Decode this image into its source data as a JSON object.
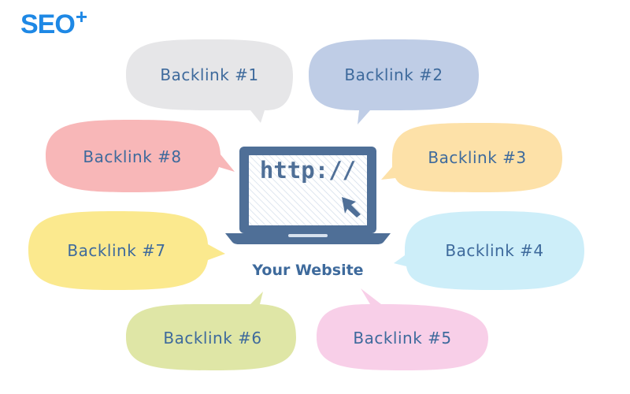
{
  "brand": {
    "logo_text": "SEO",
    "logo_superscript": "+",
    "logo_color": "#1e88e5"
  },
  "center": {
    "url_text": "http://",
    "caption": "Your Website",
    "icon": "laptop-icon",
    "cursor_icon": "cursor-arrow-icon"
  },
  "colors": {
    "text": "#3e6a9c",
    "laptop": "#4f6f97"
  },
  "backlinks": [
    {
      "label": "Backlink #1",
      "color": "#e6e6e8"
    },
    {
      "label": "Backlink #2",
      "color": "#bfcde6"
    },
    {
      "label": "Backlink #3",
      "color": "#fde1a8"
    },
    {
      "label": "Backlink #4",
      "color": "#cdeef9"
    },
    {
      "label": "Backlink #5",
      "color": "#f8cfe8"
    },
    {
      "label": "Backlink #6",
      "color": "#dfe6a6"
    },
    {
      "label": "Backlink #7",
      "color": "#fbe98e"
    },
    {
      "label": "Backlink #8",
      "color": "#f8b7b8"
    }
  ]
}
